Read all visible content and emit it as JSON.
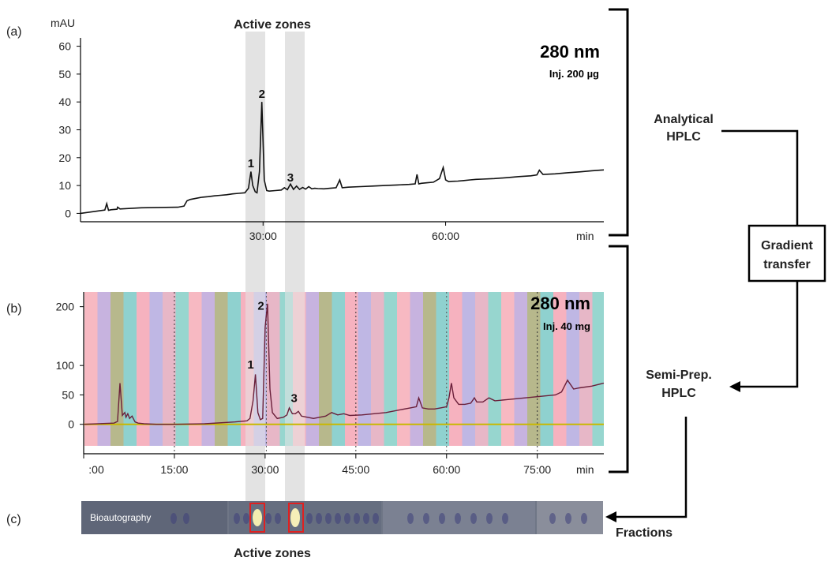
{
  "figure": {
    "panel_a": "(a)",
    "panel_b": "(b)",
    "panel_c": "(c)",
    "active_zones_top": "Active zones",
    "active_zones_bottom": "Active zones"
  },
  "flow": {
    "analytical": [
      "Analytical",
      "HPLC"
    ],
    "gradient": [
      "Gradient",
      "transfer"
    ],
    "semiprep": [
      "Semi-Prep.",
      "HPLC"
    ],
    "fractions": "Fractions"
  },
  "bioautography": {
    "label": "Bioautography",
    "background": "#6f7686",
    "highlight_color": "#e02020"
  },
  "chart_data": [
    {
      "type": "line",
      "title": "",
      "annotation_wavelength": "280 nm",
      "annotation_injection": "Inj. 200 µg",
      "ylabel": "mAU",
      "xlabel": "min",
      "ylim": [
        -3,
        63
      ],
      "xlim": [
        0,
        86
      ],
      "y_ticks": [
        0,
        10,
        20,
        30,
        40,
        50,
        60
      ],
      "x_ticks": [
        {
          "v": 30,
          "label": "30:00"
        },
        {
          "v": 60,
          "label": "60:00"
        }
      ],
      "grid": false,
      "color": "#111111",
      "x": [
        0,
        4,
        4.3,
        4.6,
        5,
        6,
        6.1,
        6.5,
        10,
        16,
        17,
        17.5,
        18,
        19,
        20,
        21,
        22,
        23,
        24,
        25,
        26,
        27,
        27.6,
        28,
        28.3,
        28.7,
        29,
        29.4,
        29.8,
        30.2,
        30.6,
        31,
        32,
        33,
        33.5,
        34,
        34.5,
        35,
        35.5,
        36,
        36.5,
        37,
        37.5,
        38,
        38.5,
        39,
        40,
        41,
        42,
        42.6,
        43,
        44,
        46,
        48,
        50,
        52,
        54,
        55,
        55.3,
        55.6,
        56,
        57,
        58,
        59,
        59.6,
        60,
        60.5,
        61,
        62,
        63,
        64,
        65,
        66,
        68,
        70,
        72,
        74,
        75,
        75.4,
        76,
        78,
        80,
        82,
        84,
        86
      ],
      "y": [
        0,
        1.2,
        3.5,
        1.1,
        1.3,
        1.5,
        2.2,
        1.6,
        2.0,
        2.2,
        2.6,
        4.5,
        5.0,
        5.4,
        5.8,
        6.0,
        6.3,
        6.5,
        6.7,
        7.0,
        7.2,
        7.4,
        9.0,
        15.0,
        10.0,
        7.8,
        7.4,
        15.0,
        40.0,
        12.0,
        8.2,
        8.0,
        8.2,
        8.4,
        9.2,
        8.5,
        10.5,
        8.6,
        9.8,
        8.6,
        9.3,
        8.7,
        9.6,
        8.8,
        9.0,
        8.9,
        8.8,
        9.0,
        9.2,
        12.0,
        9.2,
        9.4,
        9.6,
        9.8,
        10.0,
        10.2,
        10.4,
        10.6,
        14.0,
        10.6,
        10.8,
        11.0,
        11.2,
        12.5,
        16.5,
        12.0,
        11.4,
        11.5,
        11.6,
        11.8,
        12.0,
        12.2,
        12.3,
        12.5,
        12.8,
        13.2,
        13.5,
        13.8,
        15.5,
        14.0,
        14.2,
        14.6,
        14.9,
        15.3,
        15.6
      ],
      "peak_labels": [
        {
          "text": "1",
          "x": 28.0,
          "y": 16.5
        },
        {
          "text": "2",
          "x": 29.8,
          "y": 41.5
        },
        {
          "text": "3",
          "x": 34.5,
          "y": 11.5
        }
      ]
    },
    {
      "type": "line",
      "title": "",
      "annotation_wavelength": "280 nm",
      "annotation_injection": "Inj. 40 mg",
      "ylabel": "",
      "xlabel": "min",
      "ylim": [
        -50,
        225
      ],
      "xlim": [
        0,
        86
      ],
      "y_ticks": [
        0,
        50,
        100,
        200
      ],
      "x_ticks": [
        {
          "v": 0,
          "label": ":00"
        },
        {
          "v": 15,
          "label": "15:00"
        },
        {
          "v": 30,
          "label": "30:00"
        },
        {
          "v": 45,
          "label": "45:00"
        },
        {
          "v": 60,
          "label": "60:00"
        },
        {
          "v": 75,
          "label": "75:00"
        }
      ],
      "grid": false,
      "color": "#6a1f3a",
      "baseline_color": "#c9b800",
      "band_colors": [
        "#f7b9c2",
        "#c7b3df",
        "#b7b88c",
        "#8fd1cf",
        "#f6b2bf",
        "#bfb7e4",
        "#e7b7c7",
        "#97d6cf"
      ],
      "dotted_x": [
        15,
        45,
        75
      ],
      "x": [
        0,
        5,
        5.6,
        6.0,
        6.4,
        6.8,
        7.0,
        7.3,
        7.6,
        8.0,
        8.5,
        9,
        10,
        12,
        15,
        20,
        25,
        27,
        27.5,
        28,
        28.4,
        28.8,
        29.2,
        29.6,
        30.0,
        30.4,
        30.8,
        31.2,
        32,
        33,
        33.6,
        34,
        34.5,
        35,
        35.5,
        36,
        37,
        38,
        40,
        41,
        42,
        43,
        44,
        46,
        48,
        50,
        52,
        54,
        55,
        55.4,
        56,
        57,
        58,
        59,
        60,
        60.4,
        60.8,
        61.2,
        62,
        63,
        64,
        64.6,
        65,
        66,
        67,
        68,
        70,
        72,
        74,
        76,
        78,
        79,
        80,
        81,
        82,
        84,
        86
      ],
      "y": [
        0,
        2,
        5,
        70,
        15,
        20,
        12,
        18,
        10,
        14,
        4,
        2,
        1,
        0,
        0,
        1,
        4,
        6,
        10,
        40,
        85,
        20,
        8,
        10,
        165,
        205,
        60,
        20,
        10,
        12,
        16,
        28,
        18,
        18,
        22,
        14,
        12,
        10,
        14,
        20,
        16,
        18,
        15,
        16,
        18,
        20,
        24,
        28,
        30,
        45,
        28,
        26,
        26,
        28,
        30,
        45,
        70,
        45,
        34,
        34,
        36,
        45,
        38,
        38,
        45,
        40,
        42,
        44,
        46,
        48,
        50,
        55,
        75,
        60,
        62,
        65,
        70
      ]
    }
  ],
  "chart_b_peak_labels": [
    {
      "text": "1",
      "x": 27.6,
      "y": 95
    },
    {
      "text": "2",
      "x": 29.3,
      "y": 195
    },
    {
      "text": "3",
      "x": 34.8,
      "y": 38
    }
  ]
}
